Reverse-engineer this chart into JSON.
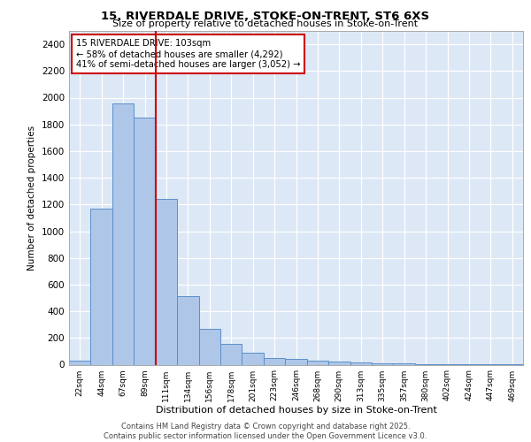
{
  "title1": "15, RIVERDALE DRIVE, STOKE-ON-TRENT, ST6 6XS",
  "title2": "Size of property relative to detached houses in Stoke-on-Trent",
  "xlabel": "Distribution of detached houses by size in Stoke-on-Trent",
  "ylabel": "Number of detached properties",
  "categories": [
    "22sqm",
    "44sqm",
    "67sqm",
    "89sqm",
    "111sqm",
    "134sqm",
    "156sqm",
    "178sqm",
    "201sqm",
    "223sqm",
    "246sqm",
    "268sqm",
    "290sqm",
    "313sqm",
    "335sqm",
    "357sqm",
    "380sqm",
    "402sqm",
    "424sqm",
    "447sqm",
    "469sqm"
  ],
  "values": [
    30,
    1170,
    1960,
    1850,
    1240,
    510,
    270,
    155,
    90,
    50,
    40,
    30,
    20,
    15,
    10,
    8,
    5,
    3,
    2,
    1,
    1
  ],
  "bar_color": "#aec6e8",
  "bar_edge_color": "#5b8fc9",
  "background_color": "#dce8f5",
  "grid_color": "#ffffff",
  "annotation_box_color": "#cc0000",
  "vline_x_index": 3.5,
  "vline_color": "#cc0000",
  "ylim": [
    0,
    2500
  ],
  "yticks": [
    0,
    200,
    400,
    600,
    800,
    1000,
    1200,
    1400,
    1600,
    1800,
    2000,
    2200,
    2400
  ],
  "annotation_title": "15 RIVERDALE DRIVE: 103sqm",
  "annotation_line1": "← 58% of detached houses are smaller (4,292)",
  "annotation_line2": "41% of semi-detached houses are larger (3,052) →",
  "footer1": "Contains HM Land Registry data © Crown copyright and database right 2025.",
  "footer2": "Contains public sector information licensed under the Open Government Licence v3.0."
}
